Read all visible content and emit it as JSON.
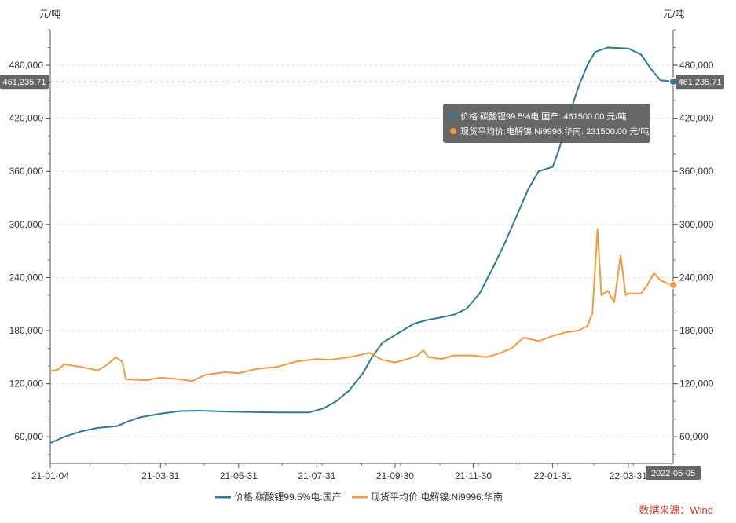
{
  "chart_data": {
    "type": "line",
    "left_unit": "元/吨",
    "right_unit": "元/吨",
    "x_start": "2021-01-04",
    "x_end": "2022-05-05",
    "x_ticks": [
      {
        "date": "2021-01-04",
        "label": "21-01-04"
      },
      {
        "date": "2021-03-31",
        "label": "21-03-31"
      },
      {
        "date": "2021-05-31",
        "label": "21-05-31"
      },
      {
        "date": "2021-07-31",
        "label": "21-07-31"
      },
      {
        "date": "2021-09-30",
        "label": "21-09-30"
      },
      {
        "date": "2021-11-30",
        "label": "21-11-30"
      },
      {
        "date": "2022-01-31",
        "label": "22-01-31"
      },
      {
        "date": "2022-03-31",
        "label": "22-03-31"
      }
    ],
    "x_end_label": "2022-05-05",
    "ylim": [
      30000,
      520000
    ],
    "y_ticks": [
      {
        "value": 60000,
        "label": "60,000"
      },
      {
        "value": 120000,
        "label": "120,000"
      },
      {
        "value": 180000,
        "label": "180,000"
      },
      {
        "value": 240000,
        "label": "240,000"
      },
      {
        "value": 300000,
        "label": "300,000"
      },
      {
        "value": 360000,
        "label": "360,000"
      },
      {
        "value": 420000,
        "label": "420,000"
      },
      {
        "value": 480000,
        "label": "480,000"
      }
    ],
    "pointer": {
      "value": 461235.71,
      "label": "461,235.71"
    },
    "grid": true,
    "legend_position": "bottom",
    "source": "数据来源：Wind",
    "tooltip": {
      "lines": [
        "价格:碳酸锂99.5%电:国产: 461500.00  元/吨",
        "现货平均价:电解镍:Ni9996:华南: 231500.00  元/吨"
      ]
    },
    "series": [
      {
        "name": "价格:碳酸锂99.5%电:国产",
        "color": "#2e7a97",
        "points": [
          [
            "2021-01-04",
            53000
          ],
          [
            "2021-01-15",
            60000
          ],
          [
            "2021-01-28",
            66000
          ],
          [
            "2021-02-10",
            70000
          ],
          [
            "2021-02-25",
            72000
          ],
          [
            "2021-03-05",
            77000
          ],
          [
            "2021-03-15",
            82000
          ],
          [
            "2021-03-31",
            86000
          ],
          [
            "2021-04-15",
            89000
          ],
          [
            "2021-05-01",
            89500
          ],
          [
            "2021-05-20",
            88500
          ],
          [
            "2021-06-10",
            88000
          ],
          [
            "2021-07-01",
            87500
          ],
          [
            "2021-07-25",
            87500
          ],
          [
            "2021-08-05",
            92000
          ],
          [
            "2021-08-15",
            100000
          ],
          [
            "2021-08-25",
            112000
          ],
          [
            "2021-09-05",
            132000
          ],
          [
            "2021-09-12",
            150000
          ],
          [
            "2021-09-20",
            166000
          ],
          [
            "2021-09-30",
            175000
          ],
          [
            "2021-10-08",
            182000
          ],
          [
            "2021-10-15",
            188000
          ],
          [
            "2021-10-25",
            192000
          ],
          [
            "2021-11-05",
            195000
          ],
          [
            "2021-11-15",
            198000
          ],
          [
            "2021-11-25",
            205000
          ],
          [
            "2021-12-05",
            222000
          ],
          [
            "2021-12-15",
            250000
          ],
          [
            "2021-12-25",
            280000
          ],
          [
            "2022-01-03",
            310000
          ],
          [
            "2022-01-12",
            340000
          ],
          [
            "2022-01-20",
            360000
          ],
          [
            "2022-01-31",
            365000
          ],
          [
            "2022-02-05",
            385000
          ],
          [
            "2022-02-12",
            420000
          ],
          [
            "2022-02-20",
            455000
          ],
          [
            "2022-02-27",
            480000
          ],
          [
            "2022-03-05",
            495000
          ],
          [
            "2022-03-15",
            500000
          ],
          [
            "2022-03-31",
            499000
          ],
          [
            "2022-04-10",
            492000
          ],
          [
            "2022-04-18",
            475000
          ],
          [
            "2022-04-25",
            463000
          ],
          [
            "2022-05-05",
            461500
          ]
        ]
      },
      {
        "name": "现货平均价:电解镍:Ni9996:华南",
        "color": "#f19a3e",
        "points": [
          [
            "2021-01-04",
            134000
          ],
          [
            "2021-01-10",
            136000
          ],
          [
            "2021-01-15",
            142000
          ],
          [
            "2021-01-28",
            139000
          ],
          [
            "2021-02-10",
            135000
          ],
          [
            "2021-02-18",
            142000
          ],
          [
            "2021-02-24",
            150000
          ],
          [
            "2021-03-01",
            145000
          ],
          [
            "2021-03-04",
            125000
          ],
          [
            "2021-03-20",
            124000
          ],
          [
            "2021-03-31",
            127000
          ],
          [
            "2021-04-15",
            125000
          ],
          [
            "2021-04-25",
            123000
          ],
          [
            "2021-05-05",
            130000
          ],
          [
            "2021-05-20",
            133000
          ],
          [
            "2021-05-31",
            132000
          ],
          [
            "2021-06-15",
            137000
          ],
          [
            "2021-06-30",
            139000
          ],
          [
            "2021-07-15",
            145000
          ],
          [
            "2021-07-31",
            148000
          ],
          [
            "2021-08-10",
            147000
          ],
          [
            "2021-08-25",
            150000
          ],
          [
            "2021-09-01",
            152000
          ],
          [
            "2021-09-10",
            155000
          ],
          [
            "2021-09-20",
            147000
          ],
          [
            "2021-09-30",
            144000
          ],
          [
            "2021-10-10",
            148000
          ],
          [
            "2021-10-18",
            152000
          ],
          [
            "2021-10-22",
            158000
          ],
          [
            "2021-10-26",
            150000
          ],
          [
            "2021-11-05",
            148000
          ],
          [
            "2021-11-15",
            152000
          ],
          [
            "2021-11-30",
            152000
          ],
          [
            "2021-12-10",
            150000
          ],
          [
            "2021-12-20",
            154000
          ],
          [
            "2021-12-30",
            160000
          ],
          [
            "2022-01-08",
            172000
          ],
          [
            "2022-01-15",
            170000
          ],
          [
            "2022-01-20",
            168000
          ],
          [
            "2022-01-31",
            174000
          ],
          [
            "2022-02-10",
            178000
          ],
          [
            "2022-02-20",
            180000
          ],
          [
            "2022-02-27",
            185000
          ],
          [
            "2022-03-03",
            200000
          ],
          [
            "2022-03-07",
            295000
          ],
          [
            "2022-03-10",
            220000
          ],
          [
            "2022-03-15",
            225000
          ],
          [
            "2022-03-20",
            212000
          ],
          [
            "2022-03-25",
            265000
          ],
          [
            "2022-03-29",
            220000
          ],
          [
            "2022-03-31",
            222000
          ],
          [
            "2022-04-10",
            222000
          ],
          [
            "2022-04-15",
            232000
          ],
          [
            "2022-04-20",
            245000
          ],
          [
            "2022-04-25",
            237000
          ],
          [
            "2022-05-01",
            233000
          ],
          [
            "2022-05-05",
            231500
          ]
        ]
      }
    ]
  }
}
